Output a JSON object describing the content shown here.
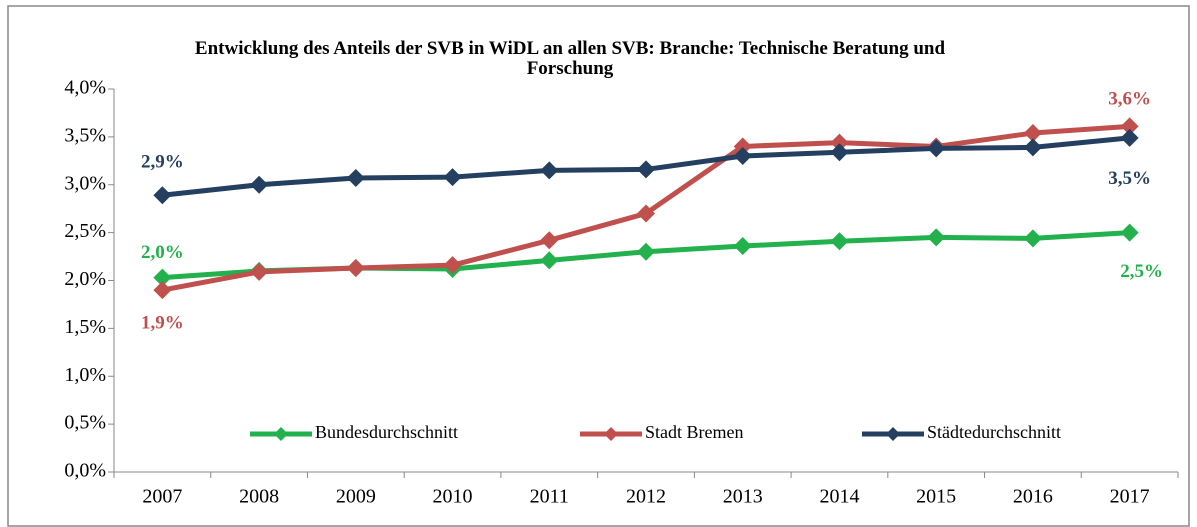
{
  "chart_data": {
    "type": "line",
    "title": "Entwicklung des Anteils der SVB in WiDL an allen SVB: Branche: Technische Beratung und Forschung",
    "x": [
      2007,
      2008,
      2009,
      2010,
      2011,
      2012,
      2013,
      2014,
      2015,
      2016,
      2017
    ],
    "ylim": [
      0,
      4
    ],
    "yticks": [
      {
        "value": 0,
        "label": "0,0%"
      },
      {
        "value": 0.5,
        "label": "0,5%"
      },
      {
        "value": 1,
        "label": "1,0%"
      },
      {
        "value": 1.5,
        "label": "1,5%"
      },
      {
        "value": 2,
        "label": "2,0%"
      },
      {
        "value": 2.5,
        "label": "2,5%"
      },
      {
        "value": 3,
        "label": "3,0%"
      },
      {
        "value": 3.5,
        "label": "3,5%"
      },
      {
        "value": 4,
        "label": "4,0%"
      }
    ],
    "legend": "bottom",
    "series": [
      {
        "name": "Bundesdurchschnitt",
        "color": "#22b14c",
        "values": [
          2.03,
          2.1,
          2.13,
          2.12,
          2.21,
          2.3,
          2.36,
          2.41,
          2.45,
          2.44,
          2.5
        ],
        "value_labels": [
          "2,0%",
          null,
          null,
          null,
          null,
          null,
          null,
          null,
          null,
          null,
          "2,5%"
        ]
      },
      {
        "name": "Stadt Bremen",
        "color": "#c0504d",
        "values": [
          1.9,
          2.09,
          2.13,
          2.16,
          2.42,
          2.7,
          3.4,
          3.44,
          3.4,
          3.54,
          3.61
        ],
        "value_labels": [
          "1,9%",
          null,
          null,
          null,
          null,
          null,
          null,
          null,
          null,
          null,
          "3,6%"
        ]
      },
      {
        "name": "Städtedurchschnitt",
        "color": "#243f60",
        "values": [
          2.89,
          3.0,
          3.07,
          3.08,
          3.15,
          3.16,
          3.3,
          3.34,
          3.38,
          3.39,
          3.49
        ],
        "value_labels": [
          "2,9%",
          null,
          null,
          null,
          null,
          null,
          null,
          null,
          null,
          null,
          "3,5%"
        ]
      }
    ]
  }
}
